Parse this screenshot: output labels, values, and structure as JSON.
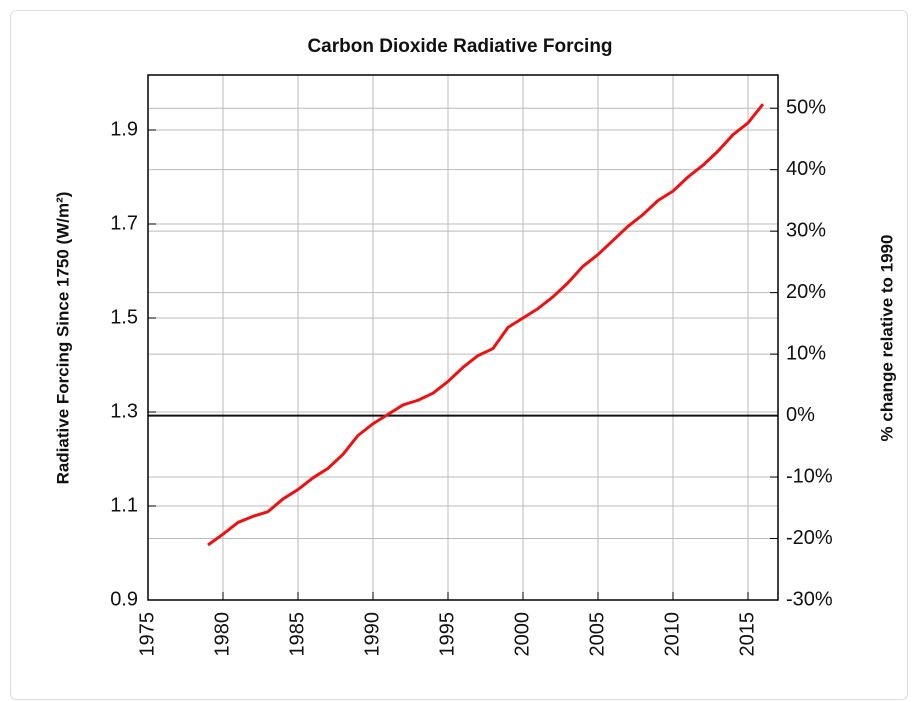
{
  "chart_data": {
    "type": "line",
    "title": "Carbon Dioxide Radiative Forcing",
    "y_label": "Radiative Forcing Since 1750 (W/m²)",
    "y2_label": "% change relative to 1990",
    "x": [
      1979,
      1980,
      1981,
      1982,
      1983,
      1984,
      1985,
      1986,
      1987,
      1988,
      1989,
      1990,
      1991,
      1992,
      1993,
      1994,
      1995,
      1996,
      1997,
      1998,
      1999,
      2000,
      2001,
      2002,
      2003,
      2004,
      2005,
      2006,
      2007,
      2008,
      2009,
      2010,
      2011,
      2012,
      2013,
      2014,
      2015,
      2016
    ],
    "series": [
      {
        "color": "#ee1111",
        "values": [
          1.017,
          1.04,
          1.065,
          1.078,
          1.088,
          1.115,
          1.135,
          1.16,
          1.18,
          1.21,
          1.25,
          1.275,
          1.295,
          1.315,
          1.325,
          1.34,
          1.365,
          1.395,
          1.42,
          1.435,
          1.48,
          1.5,
          1.52,
          1.545,
          1.575,
          1.61,
          1.635,
          1.665,
          1.695,
          1.72,
          1.75,
          1.77,
          1.8,
          1.825,
          1.855,
          1.89,
          1.915,
          1.955
        ]
      }
    ],
    "xlim": [
      1975,
      2017
    ],
    "xticks": [
      1975,
      1980,
      1985,
      1990,
      1995,
      2000,
      2005,
      2010,
      2015
    ],
    "ylim": [
      0.9,
      2.017
    ],
    "yticks": [
      0.9,
      1.1,
      1.3,
      1.5,
      1.7,
      1.9
    ],
    "y2lim": [
      -30,
      55.4
    ],
    "y2ticks": [
      {
        "value": -30,
        "label": "-30%"
      },
      {
        "value": -20,
        "label": "-20%"
      },
      {
        "value": -10,
        "label": "-10%"
      },
      {
        "value": 0,
        "label": "0%"
      },
      {
        "value": 10,
        "label": "10%"
      },
      {
        "value": 20,
        "label": "20%"
      },
      {
        "value": 30,
        "label": "30%"
      },
      {
        "value": 40,
        "label": "40%"
      },
      {
        "value": 50,
        "label": "50%"
      }
    ],
    "reference_line": 0,
    "grid": true
  }
}
